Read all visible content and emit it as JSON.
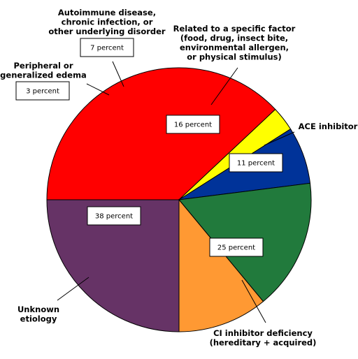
{
  "chart_data": {
    "type": "pie",
    "title": "",
    "slices": [
      {
        "label": [
          "Unknown",
          "etiology"
        ],
        "value": 38,
        "value_label": "38 percent",
        "color": "#ff0000"
      },
      {
        "label": [
          "Peripheral or",
          "generalized edema"
        ],
        "value": 3,
        "value_label": "3 percent",
        "color": "#ffff00"
      },
      {
        "label": [
          "Autoimmune disease,",
          "chronic infection, or",
          "other underlying disorder"
        ],
        "value": 7,
        "value_label": "7 percent",
        "color": "#003399"
      },
      {
        "label": [
          "Related to a specific factor",
          "(food, drug, insect bite,",
          "environmental allergen,",
          "or physical stimulus)"
        ],
        "value": 16,
        "value_label": "16 percent",
        "color": "#217a3c"
      },
      {
        "label": [
          "ACE inhibitor"
        ],
        "value": 11,
        "value_label": "11 percent",
        "color": "#ff9933"
      },
      {
        "label": [
          "CI inhibitor deficiency",
          "(hereditary + acquired)"
        ],
        "value": 25,
        "value_label": "25 percent",
        "color": "#663366"
      }
    ]
  }
}
